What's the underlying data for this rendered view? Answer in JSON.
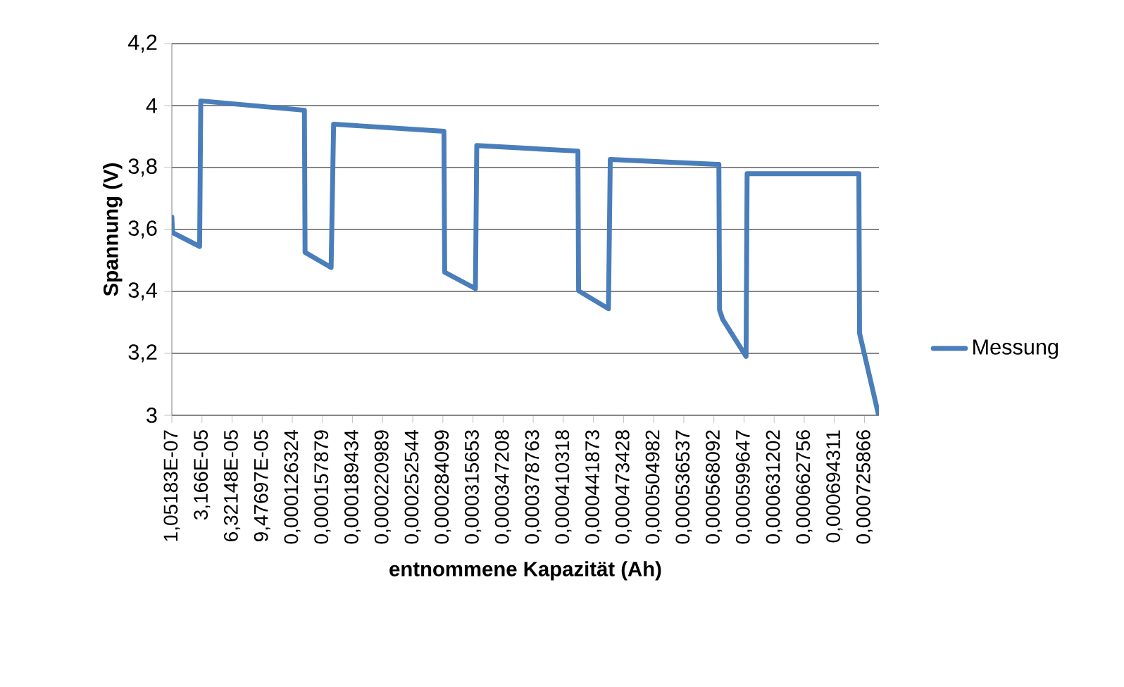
{
  "chart_data": {
    "type": "line",
    "xlabel": "entnommene Kapazität (Ah)",
    "ylabel": "Spannung (V)",
    "series": [
      {
        "name": "Messung",
        "color": "#4a7ebb",
        "x": [
          1.05183e-07,
          8.4e-07,
          2.92e-05,
          3.04e-05,
          0.000139,
          0.0001397,
          0.000167,
          0.0001696,
          0.0002852,
          0.000286,
          0.0003182,
          0.0003196,
          0.0004256,
          0.0004263,
          0.0004576,
          0.0004595,
          0.0005733,
          0.000574,
          0.0005773,
          0.0006018,
          0.0006029,
          0.00072,
          0.0007207,
          0.0007407
        ],
        "values": [
          3.64,
          3.59,
          3.545,
          4.015,
          3.985,
          3.526,
          3.477,
          3.94,
          3.917,
          3.462,
          3.409,
          3.871,
          3.853,
          3.402,
          3.344,
          3.826,
          3.81,
          3.34,
          3.31,
          3.19,
          3.78,
          3.78,
          3.265,
          3.0
        ]
      }
    ],
    "xlim": [
      1.05183e-07,
      0.000741
    ],
    "xticks": [
      {
        "value": 1.05183e-07,
        "label": "1,05183E-07"
      },
      {
        "value": 3.166e-05,
        "label": "3,166E-05"
      },
      {
        "value": 6.32148e-05,
        "label": "6,32148E-05"
      },
      {
        "value": 9.47697e-05,
        "label": "9,47697E-05"
      },
      {
        "value": 0.000126324,
        "label": "0,000126324"
      },
      {
        "value": 0.000157879,
        "label": "0,000157879"
      },
      {
        "value": 0.000189434,
        "label": "0,000189434"
      },
      {
        "value": 0.000220989,
        "label": "0,000220989"
      },
      {
        "value": 0.000252544,
        "label": "0,000252544"
      },
      {
        "value": 0.000284099,
        "label": "0,000284099"
      },
      {
        "value": 0.000315653,
        "label": "0,000315653"
      },
      {
        "value": 0.000347208,
        "label": "0,000347208"
      },
      {
        "value": 0.000378763,
        "label": "0,000378763"
      },
      {
        "value": 0.000410318,
        "label": "0,000410318"
      },
      {
        "value": 0.000441873,
        "label": "0,000441873"
      },
      {
        "value": 0.000473428,
        "label": "0,000473428"
      },
      {
        "value": 0.000504982,
        "label": "0,000504982"
      },
      {
        "value": 0.000536537,
        "label": "0,000536537"
      },
      {
        "value": 0.000568092,
        "label": "0,000568092"
      },
      {
        "value": 0.000599647,
        "label": "0,000599647"
      },
      {
        "value": 0.000631202,
        "label": "0,000631202"
      },
      {
        "value": 0.000662756,
        "label": "0,000662756"
      },
      {
        "value": 0.000694311,
        "label": "0,000694311"
      },
      {
        "value": 0.000725866,
        "label": "0,000725866"
      }
    ],
    "ylim": [
      3,
      4.2
    ],
    "yticks": [
      3,
      {
        "value": 3.2,
        "label": "3,2"
      },
      {
        "value": 3.4,
        "label": "3,4"
      },
      {
        "value": 3.6,
        "label": "3,6"
      },
      {
        "value": 3.8,
        "label": "3,8"
      },
      4,
      {
        "value": 4.2,
        "label": "4,2"
      }
    ],
    "grid": "y",
    "legend": "right",
    "marker": "none",
    "line_style": "solid"
  }
}
